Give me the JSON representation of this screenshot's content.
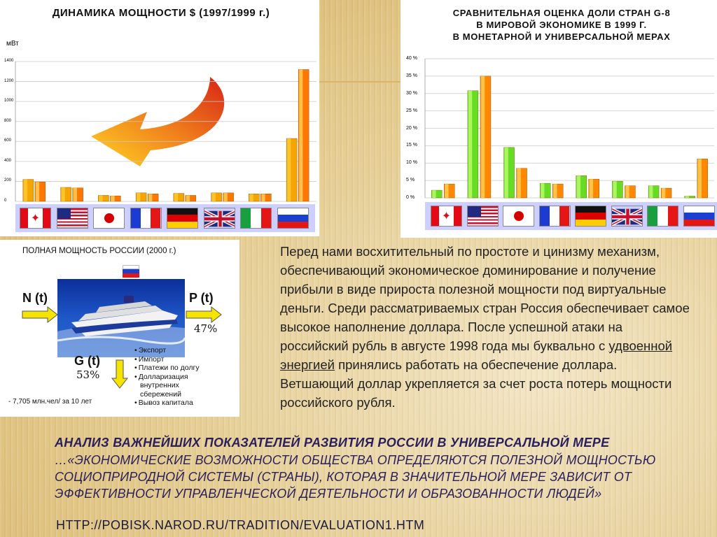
{
  "chart_left": {
    "title": "ДИНАМИКА МОЩНОСТИ $ (1997/1999 г.)",
    "unit": "мВт",
    "yticks": [
      "1400",
      "1200",
      "1000",
      "800",
      "600",
      "400",
      "200",
      "0"
    ],
    "type": "bar",
    "categories": [
      "Canada",
      "USA",
      "Japan",
      "France",
      "Germany",
      "UK",
      "Italy",
      "Russia"
    ],
    "series": [
      {
        "values": [
          220,
          140,
          60,
          85,
          80,
          85,
          75,
          630
        ]
      },
      {
        "values": [
          195,
          135,
          55,
          75,
          60,
          85,
          75,
          1320
        ]
      }
    ],
    "ylim": [
      0,
      1400
    ],
    "colors": [
      "#f6a400",
      "#ff7700"
    ]
  },
  "chart_right": {
    "title_line1": "СРАВНИТЕЛЬНАЯ ОЦЕНКА ДОЛИ  СТРАН G-8",
    "title_line2": "В МИРОВОЙ ЭКОНОМИКЕ В 1999 Г.",
    "title_line3": "В МОНЕТАРНОЙ И УНИВЕРСАЛЬНОЙ МЕРАХ",
    "yticks": [
      "40 %",
      "35 %",
      "30 %",
      "25 %",
      "20 %",
      "15 %",
      "10 %",
      "5 %",
      "0 %"
    ],
    "type": "bar",
    "categories": [
      "Canada",
      "USA",
      "Japan",
      "France",
      "Germany",
      "UK",
      "Italy",
      "Russia"
    ],
    "series": [
      {
        "values": [
          2.2,
          30.8,
          14.5,
          4.2,
          6.4,
          4.8,
          3.5,
          0.5
        ]
      },
      {
        "values": [
          4.0,
          35.0,
          8.5,
          4.0,
          5.4,
          3.5,
          2.8,
          11.2
        ]
      }
    ],
    "ylim": [
      0,
      40
    ],
    "colors": [
      "#66dd22",
      "#ff8800"
    ]
  },
  "chart_data": [
    {
      "type": "bar",
      "title": "ДИНАМИКА МОЩНОСТИ $ (1997/1999 г.)",
      "ylabel": "мВт",
      "categories": [
        "Canada",
        "USA",
        "Japan",
        "France",
        "Germany",
        "UK",
        "Italy",
        "Russia"
      ],
      "series": [
        {
          "values": [
            220,
            140,
            60,
            85,
            80,
            85,
            75,
            630
          ]
        },
        {
          "values": [
            195,
            135,
            55,
            75,
            60,
            85,
            75,
            1320
          ]
        }
      ],
      "ylim": [
        0,
        1400
      ]
    },
    {
      "type": "bar",
      "title": "СРАВНИТЕЛЬНАЯ ОЦЕНКА ДОЛИ  СТРАН G-8 В МИРОВОЙ ЭКОНОМИКЕ В 1999 Г. В МОНЕТАРНОЙ И УНИВЕРСАЛЬНОЙ МЕРАХ",
      "categories": [
        "Canada",
        "USA",
        "Japan",
        "France",
        "Germany",
        "UK",
        "Italy",
        "Russia"
      ],
      "series": [
        {
          "values": [
            2.2,
            30.8,
            14.5,
            4.2,
            6.4,
            4.8,
            3.5,
            0.5
          ]
        },
        {
          "values": [
            4.0,
            35.0,
            8.5,
            4.0,
            5.4,
            3.5,
            2.8,
            11.2
          ]
        }
      ],
      "ylim": [
        0,
        40
      ]
    }
  ],
  "flags": [
    "canada-flag",
    "usa-flag",
    "japan-flag",
    "france-flag",
    "germany-flag",
    "uk-flag",
    "italy-flag",
    "russia-flag"
  ],
  "diagram": {
    "title": "ПОЛНАЯ МОЩНОСТЬ РОССИИ  (2000 г.)",
    "n_label": "N (t)",
    "p_label": "P (t)",
    "p_pct": "47%",
    "g_label": "G (t)",
    "g_pct": "53%",
    "bullets": [
      "Экспорт",
      "Импорт",
      "Платежи по долгу",
      "Долларизация",
      "внутренних",
      "сбережений",
      "Вывоз капитала"
    ],
    "population": "- 7,705 млн.чел/ за 10 лет"
  },
  "body": {
    "part1": " Перед нами восхитительный по простоте и цинизму механизм, обеспечивающий экономическое доминирование и получение прибыли в виде прироста полезной мощности под виртуальные деньги. Среди рассматриваемых стран Россия обеспечивает самое высокое наполнение доллара. После успешной атаки на российский рубль в августе 1998 года мы буквально с ",
    "underlined": "удвоенной энергией",
    "part2": " принялись работать на обеспечение доллара. Ветшающий доллар укрепляется за счет роста потерь мощности российского рубля."
  },
  "heading": "АНАЛИЗ ВАЖНЕЙШИХ ПОКАЗАТЕЛЕЙ РАЗВИТИЯ РОССИИ В УНИВЕРСАЛЬНОЙ МЕРЕ",
  "quote": "…«ЭКОНОМИЧЕСКИЕ ВОЗМОЖНОСТИ ОБЩЕСТВА ОПРЕДЕЛЯЮТСЯ ПОЛЕЗНОЙ МОЩНОСТЬЮ СОЦИОПРИРОДНОЙ СИСТЕМЫ (СТРАНЫ), КОТОРАЯ В ЗНАЧИТЕЛЬНОЙ МЕРЕ ЗАВИСИТ ОТ ЭФФЕКТИВНОСТИ УПРАВЛЕНЧЕСКОЙ ДЕЯТЕЛЬНОСТИ И ОБРАЗОВАННОСТИ ЛЮДЕЙ»",
  "link": "HTTP://POBISK.NAROD.RU/TRADITION/EVALUATION1.HTM"
}
